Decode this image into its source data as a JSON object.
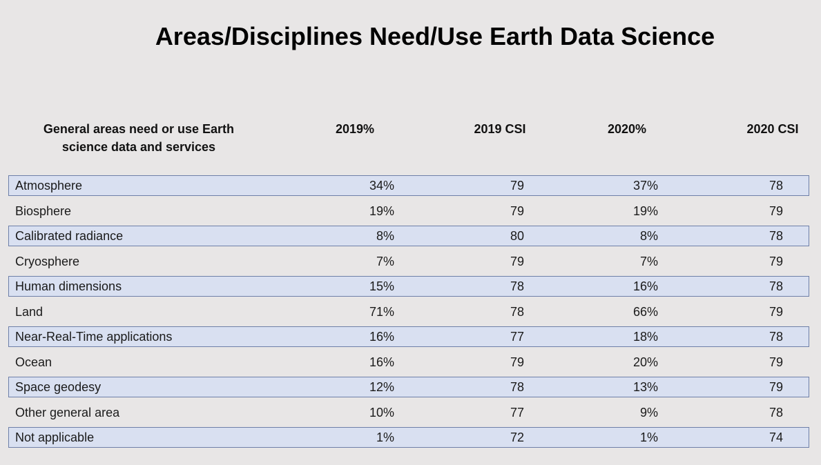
{
  "title": "Areas/Disciplines Need/Use Earth Data Science",
  "table": {
    "headers": [
      "General areas need or use Earth science data and services",
      "2019%",
      "2019 CSI",
      "2020%",
      "2020 CSI"
    ],
    "header_line1": "General areas need or use Earth",
    "header_line2": "science data and services",
    "rows": [
      {
        "area": "Atmosphere",
        "pct2019": "34%",
        "csi2019": "79",
        "pct2020": "37%",
        "csi2020": "78"
      },
      {
        "area": "Biosphere",
        "pct2019": "19%",
        "csi2019": "79",
        "pct2020": "19%",
        "csi2020": "79"
      },
      {
        "area": "Calibrated radiance",
        "pct2019": "8%",
        "csi2019": "80",
        "pct2020": "8%",
        "csi2020": "78"
      },
      {
        "area": "Cryosphere",
        "pct2019": "7%",
        "csi2019": "79",
        "pct2020": "7%",
        "csi2020": "79"
      },
      {
        "area": "Human dimensions",
        "pct2019": "15%",
        "csi2019": "78",
        "pct2020": "16%",
        "csi2020": "78"
      },
      {
        "area": "Land",
        "pct2019": "71%",
        "csi2019": "78",
        "pct2020": "66%",
        "csi2020": "79"
      },
      {
        "area": "Near-Real-Time applications",
        "pct2019": "16%",
        "csi2019": "77",
        "pct2020": "18%",
        "csi2020": "78"
      },
      {
        "area": "Ocean",
        "pct2019": "16%",
        "csi2019": "79",
        "pct2020": "20%",
        "csi2020": "79"
      },
      {
        "area": "Space geodesy",
        "pct2019": "12%",
        "csi2019": "78",
        "pct2020": "13%",
        "csi2020": "79"
      },
      {
        "area": "Other general area",
        "pct2019": "10%",
        "csi2019": "77",
        "pct2020": "9%",
        "csi2020": "78"
      },
      {
        "area": "Not applicable",
        "pct2019": "1%",
        "csi2019": "72",
        "pct2020": "1%",
        "csi2020": "74"
      }
    ]
  },
  "colors": {
    "background": "#e8e6e6",
    "shaded_row": "#d9e0f1",
    "shaded_row_border": "#6e7fa8"
  }
}
